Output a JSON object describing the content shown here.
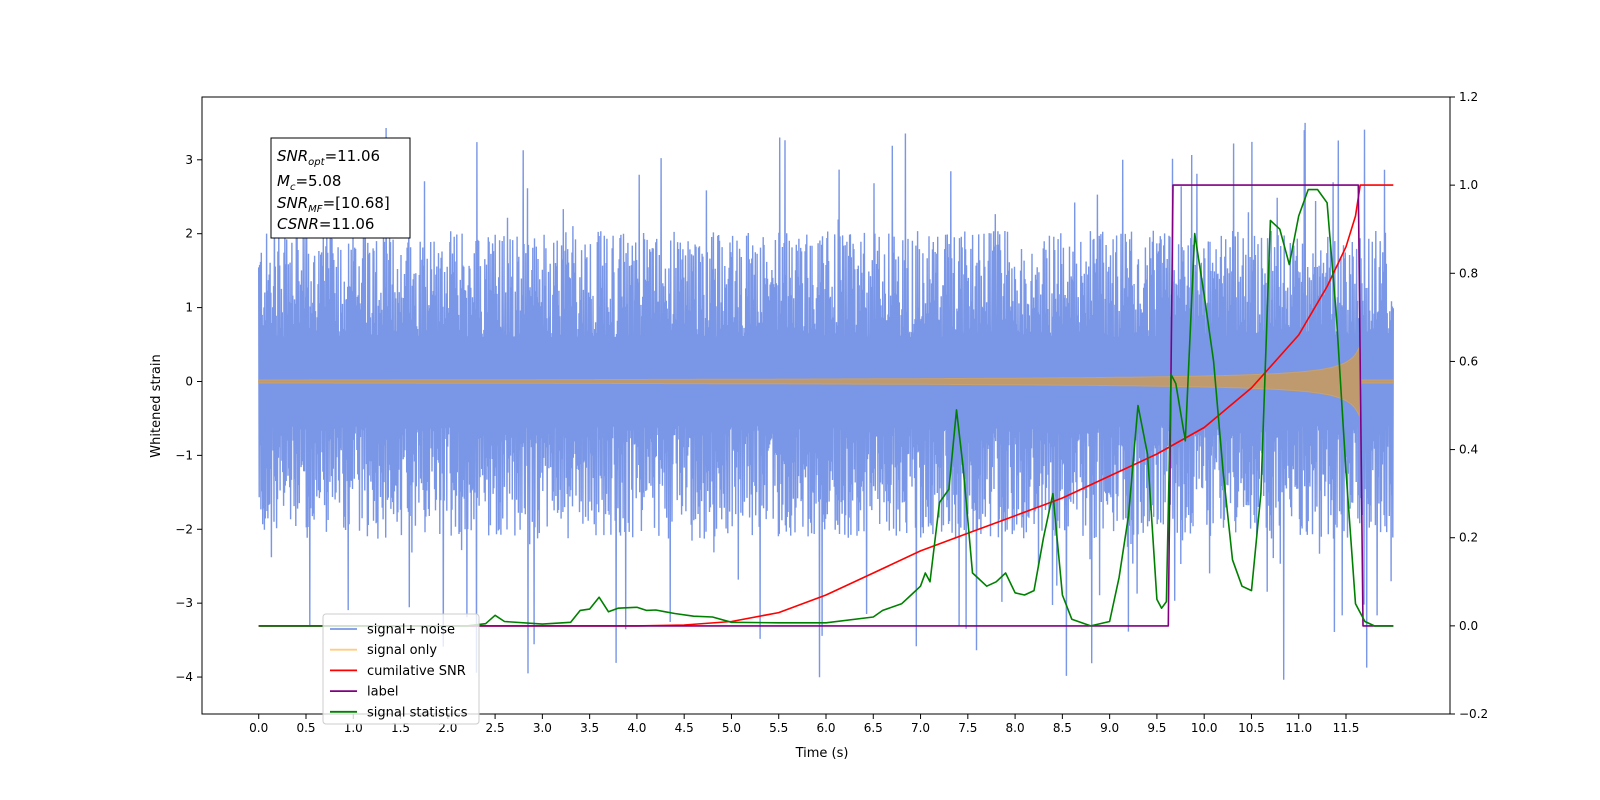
{
  "chart_data": {
    "type": "line",
    "title": "",
    "xlabel": "Time (s)",
    "ylabel": "Whitened strain",
    "xlim": [
      -0.6,
      12.6
    ],
    "ylim_left": [
      -4.5,
      3.85
    ],
    "ylim_right": [
      -0.2,
      1.2
    ],
    "x_ticks": [
      "0.0",
      "0.5",
      "1.0",
      "1.5",
      "2.0",
      "2.5",
      "3.0",
      "3.5",
      "4.0",
      "4.5",
      "5.0",
      "5.5",
      "6.0",
      "6.5",
      "7.0",
      "7.5",
      "8.0",
      "8.5",
      "9.0",
      "9.5",
      "10.0",
      "10.5",
      "11.0",
      "11.5"
    ],
    "y_ticks_left": [
      "−4",
      "−3",
      "−2",
      "−1",
      "0",
      "1",
      "2",
      "3"
    ],
    "y_ticks_right": [
      "−0.2",
      "0.0",
      "0.2",
      "0.4",
      "0.6",
      "0.8",
      "1.0",
      "1.2"
    ],
    "grid": false,
    "legend_placement": "lower-left",
    "annotation": {
      "snr_opt": "=11.06",
      "mc": "=5.08",
      "snr_mf": "=[10.68]",
      "csnr": "=11.06"
    },
    "series": [
      {
        "name": "signal+ noise",
        "color": "#7a96e6",
        "axis": "left",
        "kind": "noise",
        "x_range": [
          0.0,
          12.0
        ],
        "envelope": [
          -1.7,
          1.6
        ],
        "peaks_max": 3.5,
        "peaks_min": -4.1
      },
      {
        "name": "signal only",
        "color": "#ffcc80",
        "axis": "left",
        "kind": "chirp",
        "x_range": [
          0.0,
          12.0
        ],
        "merger_time": 11.65,
        "peak_amplitude": 0.55
      },
      {
        "name": "cumilative SNR",
        "color": "#ff0000",
        "axis": "right",
        "x": [
          0,
          4,
          4.5,
          5.0,
          5.5,
          6.0,
          6.5,
          7.0,
          7.5,
          8.0,
          8.5,
          9.0,
          9.5,
          10.0,
          10.5,
          11.0,
          11.3,
          11.5,
          11.6,
          11.65,
          12.0
        ],
        "y": [
          0,
          0,
          0.002,
          0.01,
          0.03,
          0.07,
          0.12,
          0.17,
          0.21,
          0.25,
          0.29,
          0.34,
          0.39,
          0.45,
          0.54,
          0.66,
          0.77,
          0.86,
          0.93,
          1.0,
          1.0
        ]
      },
      {
        "name": "label",
        "color": "#800080",
        "axis": "right",
        "x": [
          0,
          9.62,
          9.67,
          11.63,
          11.68,
          12.0
        ],
        "y": [
          0,
          0,
          1.0,
          1.0,
          0,
          0
        ]
      },
      {
        "name": "signal statistics",
        "color": "#008000",
        "axis": "right",
        "x": [
          0,
          2.2,
          2.4,
          2.5,
          2.6,
          3.0,
          3.3,
          3.4,
          3.5,
          3.6,
          3.7,
          3.8,
          4.0,
          4.1,
          4.2,
          4.3,
          4.4,
          4.6,
          4.8,
          5.0,
          5.5,
          6.0,
          6.5,
          6.6,
          6.8,
          6.9,
          7.0,
          7.05,
          7.1,
          7.2,
          7.3,
          7.38,
          7.45,
          7.55,
          7.6,
          7.7,
          7.8,
          7.9,
          8.0,
          8.1,
          8.2,
          8.3,
          8.4,
          8.5,
          8.6,
          8.8,
          9.0,
          9.1,
          9.2,
          9.3,
          9.4,
          9.5,
          9.55,
          9.6,
          9.65,
          9.7,
          9.8,
          9.9,
          10.0,
          10.1,
          10.2,
          10.3,
          10.4,
          10.5,
          10.6,
          10.7,
          10.8,
          10.9,
          11.0,
          11.1,
          11.2,
          11.3,
          11.4,
          11.5,
          11.6,
          11.7,
          11.8,
          11.9,
          12.0
        ],
        "y": [
          0,
          0,
          0.005,
          0.024,
          0.01,
          0.004,
          0.008,
          0.035,
          0.038,
          0.065,
          0.032,
          0.04,
          0.042,
          0.035,
          0.036,
          0.032,
          0.028,
          0.022,
          0.02,
          0.008,
          0.007,
          0.007,
          0.02,
          0.035,
          0.05,
          0.07,
          0.09,
          0.12,
          0.1,
          0.28,
          0.31,
          0.49,
          0.36,
          0.12,
          0.11,
          0.09,
          0.1,
          0.12,
          0.075,
          0.07,
          0.08,
          0.2,
          0.3,
          0.07,
          0.015,
          0.0,
          0.01,
          0.11,
          0.25,
          0.5,
          0.39,
          0.06,
          0.04,
          0.055,
          0.57,
          0.55,
          0.42,
          0.89,
          0.75,
          0.6,
          0.35,
          0.15,
          0.09,
          0.08,
          0.3,
          0.92,
          0.9,
          0.82,
          0.93,
          0.99,
          0.99,
          0.96,
          0.7,
          0.35,
          0.05,
          0.01,
          0.0,
          0.0,
          0.0
        ]
      }
    ]
  }
}
